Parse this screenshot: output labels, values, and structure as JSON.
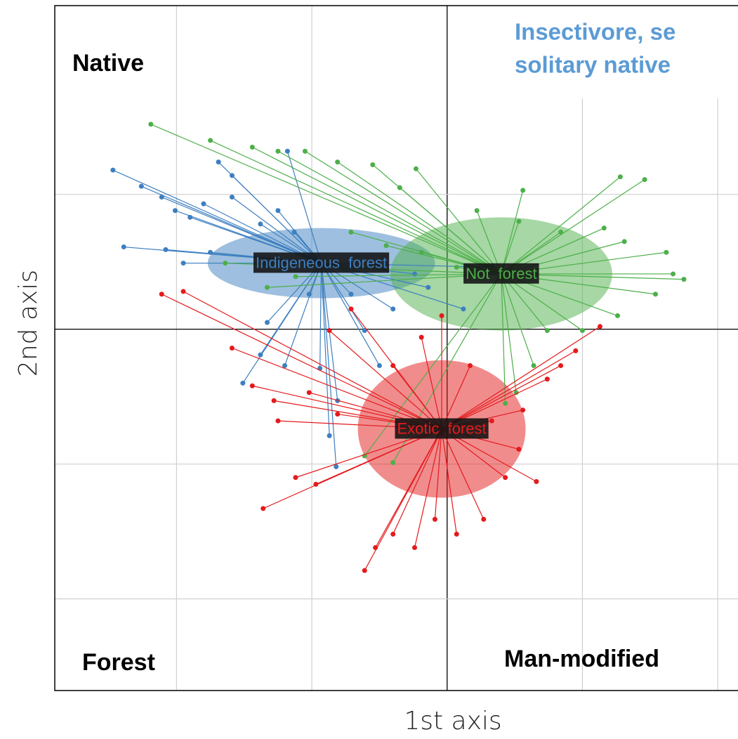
{
  "chart_data": {
    "type": "scatter",
    "title": [
      "Insectivore, se",
      "solitary native"
    ],
    "x_label": "1st axis",
    "y_label": "2nd axis",
    "annotations": [
      "Native",
      "Forest",
      "Man-modified"
    ],
    "xlim": [
      -2.9,
      2.15
    ],
    "ylim": [
      -2.68,
      2.4
    ],
    "xticks": [
      -2,
      -1,
      0,
      1,
      2
    ],
    "yticks": [
      -2,
      -1,
      0,
      1
    ],
    "grid": true,
    "series": [
      {
        "name": "Indigeneous  forest",
        "color": "#3d7fc0",
        "center": [
          -0.93,
          0.49
        ],
        "rx": 0.84,
        "ry": 0.26,
        "x": [
          -2.47,
          -2.39,
          -2.26,
          -2.11,
          -2.01,
          -1.9,
          -1.8,
          -1.69,
          -1.59,
          -1.51,
          -1.38,
          -1.33,
          -1.25,
          -1.18,
          -1.13,
          -1.02,
          -0.94,
          -0.87,
          -0.82,
          -0.71,
          -0.61,
          -0.5,
          -0.4,
          -0.24,
          -0.14,
          0.12,
          0.33,
          -1.75,
          -1.95,
          -2.08,
          -1.59,
          -1.38,
          -0.81,
          -1.2
        ],
        "values": [
          1.18,
          0.61,
          1.06,
          0.98,
          0.88,
          0.83,
          0.93,
          1.24,
          1.14,
          -0.4,
          -0.19,
          0.05,
          0.88,
          1.32,
          0.72,
          0.26,
          -0.29,
          -0.79,
          -1.02,
          0.26,
          -0.01,
          -0.27,
          0.15,
          0.41,
          0.31,
          0.15,
          0.46,
          0.57,
          0.49,
          0.59,
          0.98,
          0.78,
          -0.53,
          -0.27
        ]
      },
      {
        "name": "Not  forest",
        "color": "#4daf4a",
        "center": [
          0.4,
          0.41
        ],
        "rx": 0.82,
        "ry": 0.42,
        "x": [
          -2.19,
          -1.75,
          -1.44,
          -1.25,
          -1.05,
          -0.81,
          -0.55,
          -0.23,
          -0.35,
          0.56,
          1.28,
          1.46,
          1.16,
          1.31,
          1.62,
          1.75,
          1.67,
          1.54,
          1.26,
          1.0,
          0.74,
          0.64,
          0.51,
          0.43,
          0.07,
          -0.19,
          -0.45,
          -0.71,
          -1.12,
          -1.33,
          -1.64,
          0.22,
          0.53,
          0.84,
          -0.4,
          -0.61
        ],
        "values": [
          1.52,
          1.4,
          1.35,
          1.32,
          1.32,
          1.24,
          1.22,
          1.19,
          1.05,
          1.03,
          1.13,
          1.11,
          0.75,
          0.65,
          0.57,
          0.37,
          0.41,
          0.26,
          0.1,
          -0.01,
          -0.01,
          -0.27,
          -0.47,
          -0.55,
          0.46,
          0.57,
          0.62,
          0.72,
          0.39,
          0.31,
          0.49,
          0.88,
          0.8,
          0.72,
          -0.99,
          -0.94
        ]
      },
      {
        "name": "Exotic  forest",
        "color": "#e41a1c",
        "center": [
          -0.04,
          -0.74
        ],
        "rx": 0.62,
        "ry": 0.51,
        "x": [
          -2.11,
          -1.95,
          -1.59,
          -1.44,
          -1.36,
          -1.25,
          -1.12,
          -0.97,
          -0.87,
          -0.71,
          -0.61,
          -0.53,
          -0.4,
          -0.24,
          -0.09,
          0.07,
          0.27,
          0.43,
          0.66,
          0.53,
          0.56,
          0.74,
          0.95,
          1.13,
          0.84,
          -0.19,
          -0.04,
          -0.4,
          -0.81,
          -1.02,
          -1.28,
          0.17,
          0.33
        ],
        "values": [
          0.26,
          0.28,
          -0.14,
          -0.42,
          -1.33,
          -0.68,
          -1.1,
          -1.15,
          -0.01,
          0.15,
          -1.79,
          -1.62,
          -1.52,
          -1.62,
          -1.41,
          -1.52,
          -1.41,
          -1.1,
          -1.13,
          -0.89,
          -0.6,
          -0.37,
          -0.16,
          0.02,
          -0.27,
          -0.06,
          0.1,
          -0.27,
          -0.63,
          -0.47,
          -0.53,
          -0.27,
          -0.68
        ]
      }
    ]
  }
}
